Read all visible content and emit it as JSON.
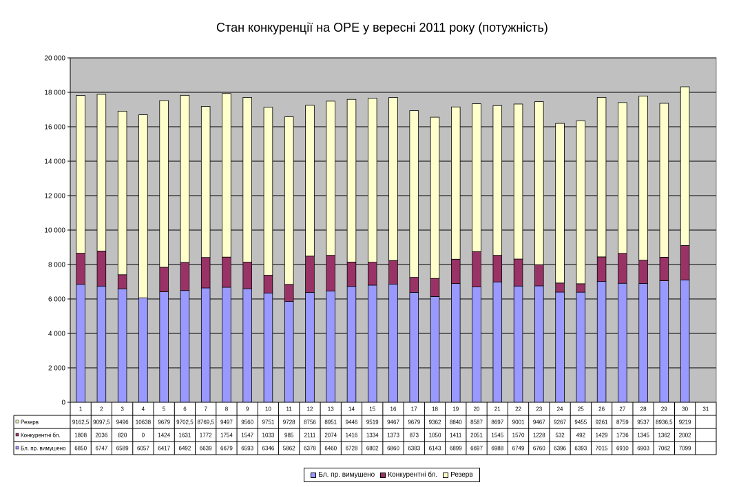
{
  "chart_data": {
    "type": "bar",
    "stacked": true,
    "title": "Стан конкуренції на ОРЕ  у вересні 2011 року (потужність)",
    "categories": [
      "1",
      "2",
      "3",
      "4",
      "5",
      "6",
      "7",
      "8",
      "9",
      "10",
      "11",
      "12",
      "13",
      "14",
      "15",
      "16",
      "17",
      "18",
      "19",
      "20",
      "21",
      "22",
      "23",
      "24",
      "25",
      "26",
      "27",
      "28",
      "29",
      "30",
      "31"
    ],
    "ylim": [
      0,
      20000
    ],
    "yticks": [
      "0",
      "2 000",
      "4 000",
      "6 000",
      "8 000",
      "10 000",
      "12 000",
      "14 000",
      "16 000",
      "18 000",
      "20 000"
    ],
    "grid": true,
    "legend_position": "bottom",
    "series": [
      {
        "name": "Бл. пр. вимушено",
        "color": "#9999ff",
        "values": [
          6850,
          6747,
          6589,
          6057,
          6417,
          6492,
          6639,
          6679,
          6593,
          6346,
          5862,
          6378,
          6460,
          6728,
          6802,
          6860,
          6383,
          6143,
          6899,
          6697,
          6988,
          6749,
          6760,
          6396,
          6393,
          7015,
          6910,
          6903,
          7062,
          7099,
          null
        ],
        "labels": [
          "6850",
          "6747",
          "6589",
          "6057",
          "6417",
          "6492",
          "6639",
          "6679",
          "6593",
          "6346",
          "5862",
          "6378",
          "6460",
          "6728",
          "6802",
          "6860",
          "6383",
          "6143",
          "6899",
          "6697",
          "6988",
          "6749",
          "6760",
          "6396",
          "6393",
          "7015",
          "6910",
          "6903",
          "7062",
          "7099",
          ""
        ]
      },
      {
        "name": "Конкурентні бл.",
        "color": "#993366",
        "values": [
          1808,
          2036,
          820,
          0,
          1424,
          1631,
          1772,
          1754,
          1547,
          1033,
          985,
          2111,
          2074,
          1416,
          1334,
          1373,
          873,
          1050,
          1411,
          2051,
          1545,
          1570,
          1228,
          532,
          492,
          1429,
          1736,
          1345,
          1362,
          2002,
          null
        ],
        "labels": [
          "1808",
          "2036",
          "820",
          "0",
          "1424",
          "1631",
          "1772",
          "1754",
          "1547",
          "1033",
          "985",
          "2111",
          "2074",
          "1416",
          "1334",
          "1373",
          "873",
          "1050",
          "1411",
          "2051",
          "1545",
          "1570",
          "1228",
          "532",
          "492",
          "1429",
          "1736",
          "1345",
          "1362",
          "2002",
          ""
        ]
      },
      {
        "name": "Резерв",
        "color": "#ffffcc",
        "values": [
          9162.5,
          9097.5,
          9496,
          10638,
          9679,
          9702.5,
          8769.5,
          9497,
          9560,
          9751,
          9728,
          8756,
          8951,
          9446,
          9519,
          9467,
          9679,
          9362,
          8840,
          8587,
          8697,
          9001,
          9467,
          9267,
          9455,
          9261,
          8759,
          9537,
          8936.5,
          9219,
          null
        ],
        "labels": [
          "9162,5",
          "9097,5",
          "9496",
          "10638",
          "9679",
          "9702,5",
          "8769,5",
          "9497",
          "9560",
          "9751",
          "9728",
          "8756",
          "8951",
          "9446",
          "9519",
          "9467",
          "9679",
          "9362",
          "8840",
          "8587",
          "8697",
          "9001",
          "9467",
          "9267",
          "9455",
          "9261",
          "8759",
          "9537",
          "8936,5",
          "9219",
          ""
        ]
      }
    ],
    "table_row_order": [
      2,
      1,
      0
    ],
    "table_row_labels": [
      "Резерв",
      "Конкурентні бл.",
      "Бл. пр. вимушено"
    ]
  }
}
